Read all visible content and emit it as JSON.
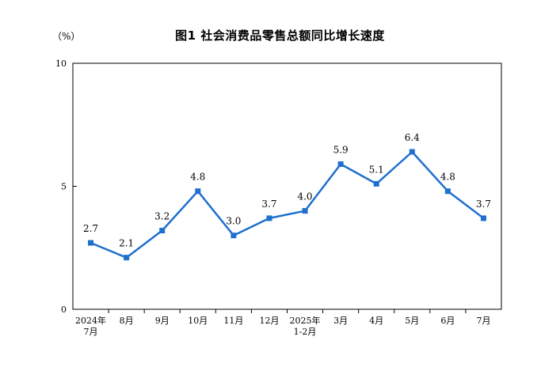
{
  "chart_data": {
    "type": "line",
    "title": "图1  社会消费品零售总额同比增长速度",
    "unit_label": "（%）",
    "categories": [
      [
        "2024年",
        "7月"
      ],
      [
        "8月"
      ],
      [
        "9月"
      ],
      [
        "10月"
      ],
      [
        "11月"
      ],
      [
        "12月"
      ],
      [
        "2025年",
        "1-2月"
      ],
      [
        "3月"
      ],
      [
        "4月"
      ],
      [
        "5月"
      ],
      [
        "6月"
      ],
      [
        "7月"
      ]
    ],
    "series": [
      {
        "values": [
          2.7,
          2.1,
          3.2,
          4.8,
          3.0,
          3.7,
          4.0,
          5.9,
          5.1,
          6.4,
          4.8,
          3.7
        ]
      }
    ],
    "data_labels": [
      "2.7",
      "2.1",
      "3.2",
      "4.8",
      "3.0",
      "3.7",
      "4.0",
      "5.9",
      "5.1",
      "6.4",
      "4.8",
      "3.7"
    ],
    "ylim": [
      0,
      10
    ],
    "yticks": [
      0,
      5,
      10
    ],
    "grid": false,
    "colors": {
      "line": "#1f6fcf",
      "axis": "#000000"
    }
  }
}
